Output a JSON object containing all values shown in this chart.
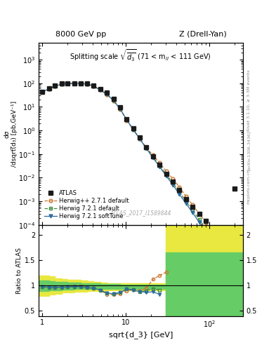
{
  "title_left": "8000 GeV pp",
  "title_right": "Z (Drell-Yan)",
  "inner_title": "Splitting scale $\\sqrt{\\overline{d_3}}$ (71 < m$_{ll}$ < 111 GeV)",
  "ylabel_main": "dσ\n/dsqrt(d_3) [pb,GeV⁻¹]",
  "ylabel_ratio": "Ratio to ATLAS",
  "xlabel": "sqrt{d_3} [GeV]",
  "watermark": "ATLAS_2017_I1589844",
  "label_hpp": "Herwig++ 2.7.1 default",
  "label_h721d": "Herwig 7.2.1 default",
  "label_h721s": "Herwig 7.2.1 softTune",
  "label_atlas": "ATLAS",
  "atlas_x": [
    1.0,
    1.2,
    1.4,
    1.7,
    2.0,
    2.4,
    2.9,
    3.4,
    4.1,
    4.9,
    5.9,
    7.1,
    8.5,
    10.2,
    12.2,
    14.6,
    17.5,
    21.0,
    25.2,
    30.2,
    36.3,
    43.5,
    52.2,
    62.6,
    75.1,
    90.1,
    108.0
  ],
  "atlas_y": [
    44.0,
    60.0,
    78.0,
    95.0,
    100.0,
    99.0,
    98.0,
    97.0,
    80.0,
    57.0,
    40.0,
    22.0,
    9.5,
    3.0,
    1.2,
    0.5,
    0.2,
    0.08,
    0.035,
    0.015,
    0.007,
    0.003,
    0.0012,
    0.0006,
    0.0003,
    0.00015,
    5e-05
  ],
  "atlas_isolated_x": [
    200.0
  ],
  "atlas_isolated_y": [
    0.0035
  ],
  "hpp_x": [
    1.0,
    1.2,
    1.4,
    1.7,
    2.0,
    2.4,
    2.9,
    3.4,
    4.1,
    4.9,
    5.9,
    7.1,
    8.5,
    10.2,
    12.2,
    14.6,
    17.5,
    21.0,
    25.2,
    30.2,
    36.3,
    43.5,
    52.2,
    62.6,
    75.1,
    90.1,
    108.0
  ],
  "hpp_y": [
    43.0,
    58.0,
    75.0,
    93.0,
    98.0,
    98.0,
    97.0,
    94.0,
    76.0,
    52.0,
    33.0,
    18.0,
    8.0,
    2.7,
    1.1,
    0.45,
    0.19,
    0.09,
    0.042,
    0.019,
    0.009,
    0.004,
    0.0016,
    0.0007,
    0.0003,
    0.00013,
    4.5e-05
  ],
  "h721d_x": [
    1.0,
    1.2,
    1.4,
    1.7,
    2.0,
    2.4,
    2.9,
    3.4,
    4.1,
    4.9,
    5.9,
    7.1,
    8.5,
    10.2,
    12.2,
    14.6,
    17.5,
    21.0,
    25.2,
    30.2,
    36.3,
    43.5,
    52.2,
    62.6,
    75.1,
    90.1,
    108.0
  ],
  "h721d_y": [
    43.0,
    58.0,
    75.0,
    92.0,
    97.0,
    97.0,
    96.0,
    93.0,
    76.0,
    52.0,
    34.0,
    18.5,
    8.2,
    2.8,
    1.1,
    0.44,
    0.18,
    0.075,
    0.032,
    0.014,
    0.006,
    0.0025,
    0.001,
    0.00042,
    0.00017,
    7e-05,
    2.5e-05
  ],
  "h721s_x": [
    1.0,
    1.2,
    1.4,
    1.7,
    2.0,
    2.4,
    2.9,
    3.4,
    4.1,
    4.9,
    5.9,
    7.1,
    8.5,
    10.2,
    12.2,
    14.6,
    17.5,
    21.0,
    25.2,
    30.2,
    36.3,
    43.5,
    52.2,
    62.6,
    75.1,
    90.1,
    108.0
  ],
  "h721s_y": [
    43.0,
    58.0,
    75.0,
    92.0,
    97.0,
    97.0,
    96.0,
    93.0,
    76.0,
    52.0,
    34.0,
    18.5,
    8.2,
    2.8,
    1.1,
    0.44,
    0.17,
    0.07,
    0.029,
    0.012,
    0.005,
    0.002,
    0.0008,
    0.00033,
    0.00013,
    5e-05,
    1.8e-05
  ],
  "ratio_hpp_x": [
    1.0,
    1.2,
    1.4,
    1.7,
    2.0,
    2.4,
    2.9,
    3.4,
    4.1,
    4.9,
    5.9,
    7.1,
    8.5,
    10.2,
    12.2,
    14.6,
    17.5,
    21.0,
    25.2,
    30.2
  ],
  "ratio_hpp_y": [
    0.978,
    0.967,
    0.962,
    0.979,
    0.98,
    0.99,
    0.99,
    0.969,
    0.95,
    0.912,
    0.825,
    0.818,
    0.842,
    0.9,
    0.917,
    0.9,
    0.95,
    1.125,
    1.2,
    1.267
  ],
  "ratio_h721d_x": [
    1.0,
    1.2,
    1.4,
    1.7,
    2.0,
    2.4,
    2.9,
    3.4,
    4.1,
    4.9,
    5.9,
    7.1,
    8.5,
    10.2,
    12.2,
    14.6,
    17.5,
    21.0,
    25.2
  ],
  "ratio_h721d_y": [
    0.978,
    0.967,
    0.962,
    0.968,
    0.97,
    0.98,
    0.98,
    0.959,
    0.95,
    0.912,
    0.85,
    0.841,
    0.863,
    0.933,
    0.917,
    0.88,
    0.9,
    0.938,
    0.914
  ],
  "ratio_h721s_x": [
    1.0,
    1.2,
    1.4,
    1.7,
    2.0,
    2.4,
    2.9,
    3.4,
    4.1,
    4.9,
    5.9,
    7.1,
    8.5,
    10.2,
    12.2,
    14.6,
    17.5,
    21.0,
    25.2
  ],
  "ratio_h721s_y": [
    0.978,
    0.967,
    0.962,
    0.968,
    0.97,
    0.98,
    0.98,
    0.959,
    0.95,
    0.912,
    0.85,
    0.841,
    0.863,
    0.933,
    0.908,
    0.88,
    0.87,
    0.875,
    0.829
  ],
  "band_yellow_x": [
    0.9,
    1.0,
    1.2,
    1.4,
    1.7,
    2.0,
    2.4,
    2.9,
    3.4,
    4.1,
    4.9,
    5.9,
    7.1,
    8.5,
    10.2,
    12.2,
    14.6,
    17.5,
    21.0,
    25.2,
    30.0
  ],
  "band_yellow_upper": [
    1.2,
    1.2,
    1.18,
    1.15,
    1.13,
    1.12,
    1.11,
    1.1,
    1.09,
    1.07,
    1.06,
    1.05,
    1.05,
    1.04,
    1.04,
    1.04,
    1.04,
    1.04,
    1.04,
    1.04,
    1.04
  ],
  "band_yellow_lower": [
    0.8,
    0.8,
    0.82,
    0.84,
    0.86,
    0.87,
    0.88,
    0.88,
    0.89,
    0.9,
    0.9,
    0.91,
    0.91,
    0.91,
    0.91,
    0.91,
    0.91,
    0.91,
    0.91,
    0.91,
    0.91
  ],
  "band_green_x": [
    0.9,
    1.0,
    1.2,
    1.4,
    1.7,
    2.0,
    2.4,
    2.9,
    3.4,
    4.1,
    4.9,
    5.9,
    7.1,
    8.5,
    10.2,
    12.2,
    14.6,
    17.5,
    21.0,
    25.2,
    30.0
  ],
  "band_green_upper": [
    1.1,
    1.1,
    1.09,
    1.08,
    1.07,
    1.06,
    1.06,
    1.05,
    1.05,
    1.04,
    1.03,
    1.03,
    1.03,
    1.02,
    1.02,
    1.02,
    1.02,
    1.02,
    1.02,
    1.02,
    1.02
  ],
  "band_green_lower": [
    0.9,
    0.9,
    0.91,
    0.91,
    0.92,
    0.92,
    0.93,
    0.93,
    0.93,
    0.94,
    0.94,
    0.94,
    0.94,
    0.94,
    0.94,
    0.94,
    0.94,
    0.94,
    0.94,
    0.94,
    0.94
  ],
  "high_x_band_start": 30.0,
  "high_x_band_end": 250.0,
  "color_atlas": "#1a1a1a",
  "color_hpp": "#cc7733",
  "color_h721d": "#3d8c3d",
  "color_h721s": "#2e6b9e",
  "color_band_yellow": "#e8e840",
  "color_band_green": "#66cc66",
  "xlim": [
    0.9,
    250
  ],
  "ylim_main": [
    0.0001,
    5000.0
  ],
  "ylim_ratio": [
    0.4,
    2.2
  ],
  "ratio_yticks": [
    0.5,
    1.0,
    1.5,
    2.0
  ]
}
